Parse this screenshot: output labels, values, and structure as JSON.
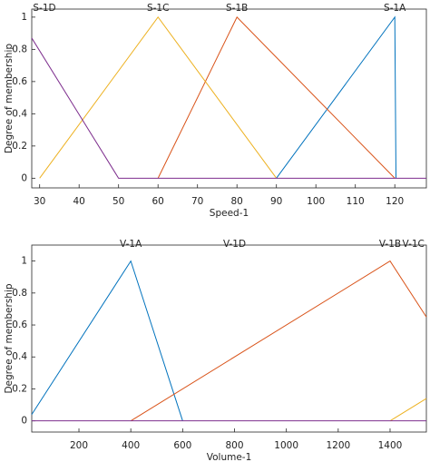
{
  "chart_data": [
    {
      "type": "line",
      "xlabel": "Speed-1",
      "ylabel": "Degree of membership",
      "xlim": [
        28,
        128
      ],
      "xticks": [
        30,
        40,
        50,
        60,
        70,
        80,
        90,
        100,
        110,
        120
      ],
      "ylim": [
        -0.06,
        1.05
      ],
      "yticks": [
        0,
        0.2,
        0.4,
        0.6,
        0.8,
        1
      ],
      "series": [
        {
          "name": "S-1A",
          "color": "#0072bd",
          "x": [
            90,
            120,
            120.3
          ],
          "values": [
            0,
            1,
            0
          ],
          "label_x": 120
        },
        {
          "name": "S-1B",
          "color": "#d95319",
          "x": [
            60,
            80,
            120
          ],
          "values": [
            0,
            1,
            0
          ],
          "label_x": 80
        },
        {
          "name": "S-1C",
          "color": "#edb120",
          "x": [
            30,
            60,
            90
          ],
          "values": [
            0,
            1,
            0
          ],
          "label_x": 60
        },
        {
          "name": "S-1D",
          "color": "#7e2f8e",
          "x": [
            28,
            50,
            128
          ],
          "values": [
            0.87,
            0,
            0
          ],
          "label_x": 31
        }
      ]
    },
    {
      "type": "line",
      "xlabel": "Volume-1",
      "ylabel": "Degree of membership",
      "xlim": [
        18,
        1540
      ],
      "xticks": [
        200,
        400,
        600,
        800,
        1000,
        1200,
        1400
      ],
      "ylim": [
        -0.07,
        1.1
      ],
      "yticks": [
        0,
        0.2,
        0.4,
        0.6,
        0.8,
        1
      ],
      "series": [
        {
          "name": "V-1A",
          "color": "#0072bd",
          "x": [
            18,
            400,
            600
          ],
          "values": [
            0.04,
            1,
            0
          ],
          "label_x": 400
        },
        {
          "name": "V-1B",
          "color": "#d95319",
          "x": [
            400,
            1400,
            1540
          ],
          "values": [
            0,
            1,
            0.65
          ],
          "label_x": 1400
        },
        {
          "name": "V-1C",
          "color": "#edb120",
          "x": [
            1400,
            1540
          ],
          "values": [
            0,
            0.14
          ],
          "label_x": 1490
        },
        {
          "name": "V-1D",
          "color": "#7e2f8e",
          "x": [
            18,
            1540
          ],
          "values": [
            0,
            0
          ],
          "label_x": 800
        }
      ]
    }
  ]
}
